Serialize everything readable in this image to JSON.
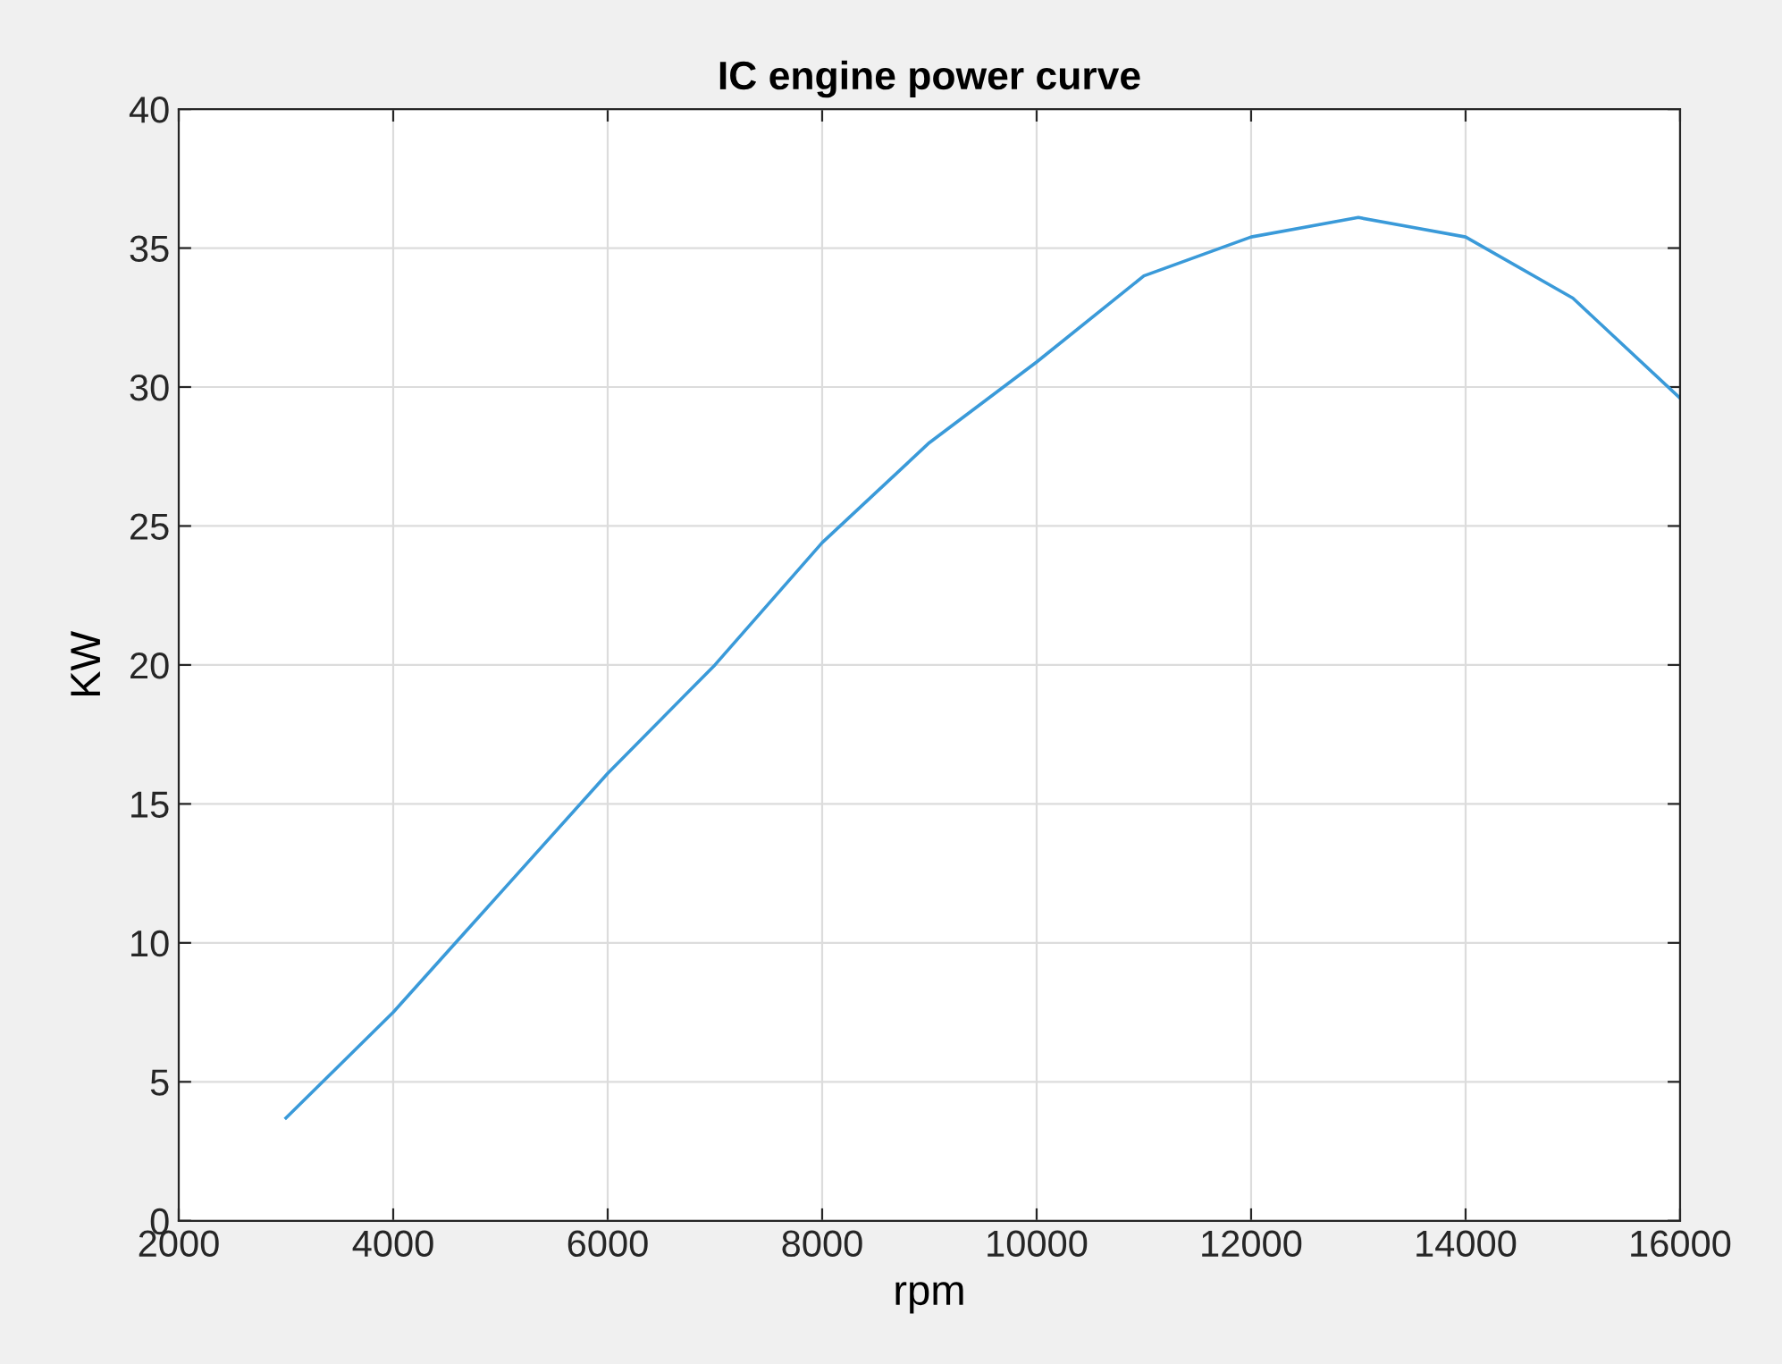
{
  "chart_data": {
    "type": "line",
    "title": "IC engine power curve",
    "xlabel": "rpm",
    "ylabel": "KW",
    "x": [
      3000,
      4000,
      5000,
      6000,
      7000,
      8000,
      9000,
      10000,
      11000,
      12000,
      13000,
      14000,
      15000,
      16000
    ],
    "series": [
      {
        "color": "#3a9ad9",
        "values": [
          3.7,
          7.5,
          11.8,
          16.1,
          20.0,
          24.4,
          28.0,
          30.9,
          34.0,
          35.4,
          36.1,
          35.4,
          33.2,
          29.6
        ]
      }
    ],
    "xlim": [
      2000,
      16000
    ],
    "xticks": [
      2000,
      4000,
      6000,
      8000,
      10000,
      12000,
      14000,
      16000
    ],
    "ylim": [
      0,
      40
    ],
    "yticks": [
      0,
      5,
      10,
      15,
      20,
      25,
      30,
      35,
      40
    ],
    "grid": true,
    "marker": "none",
    "line_style": "solid"
  }
}
